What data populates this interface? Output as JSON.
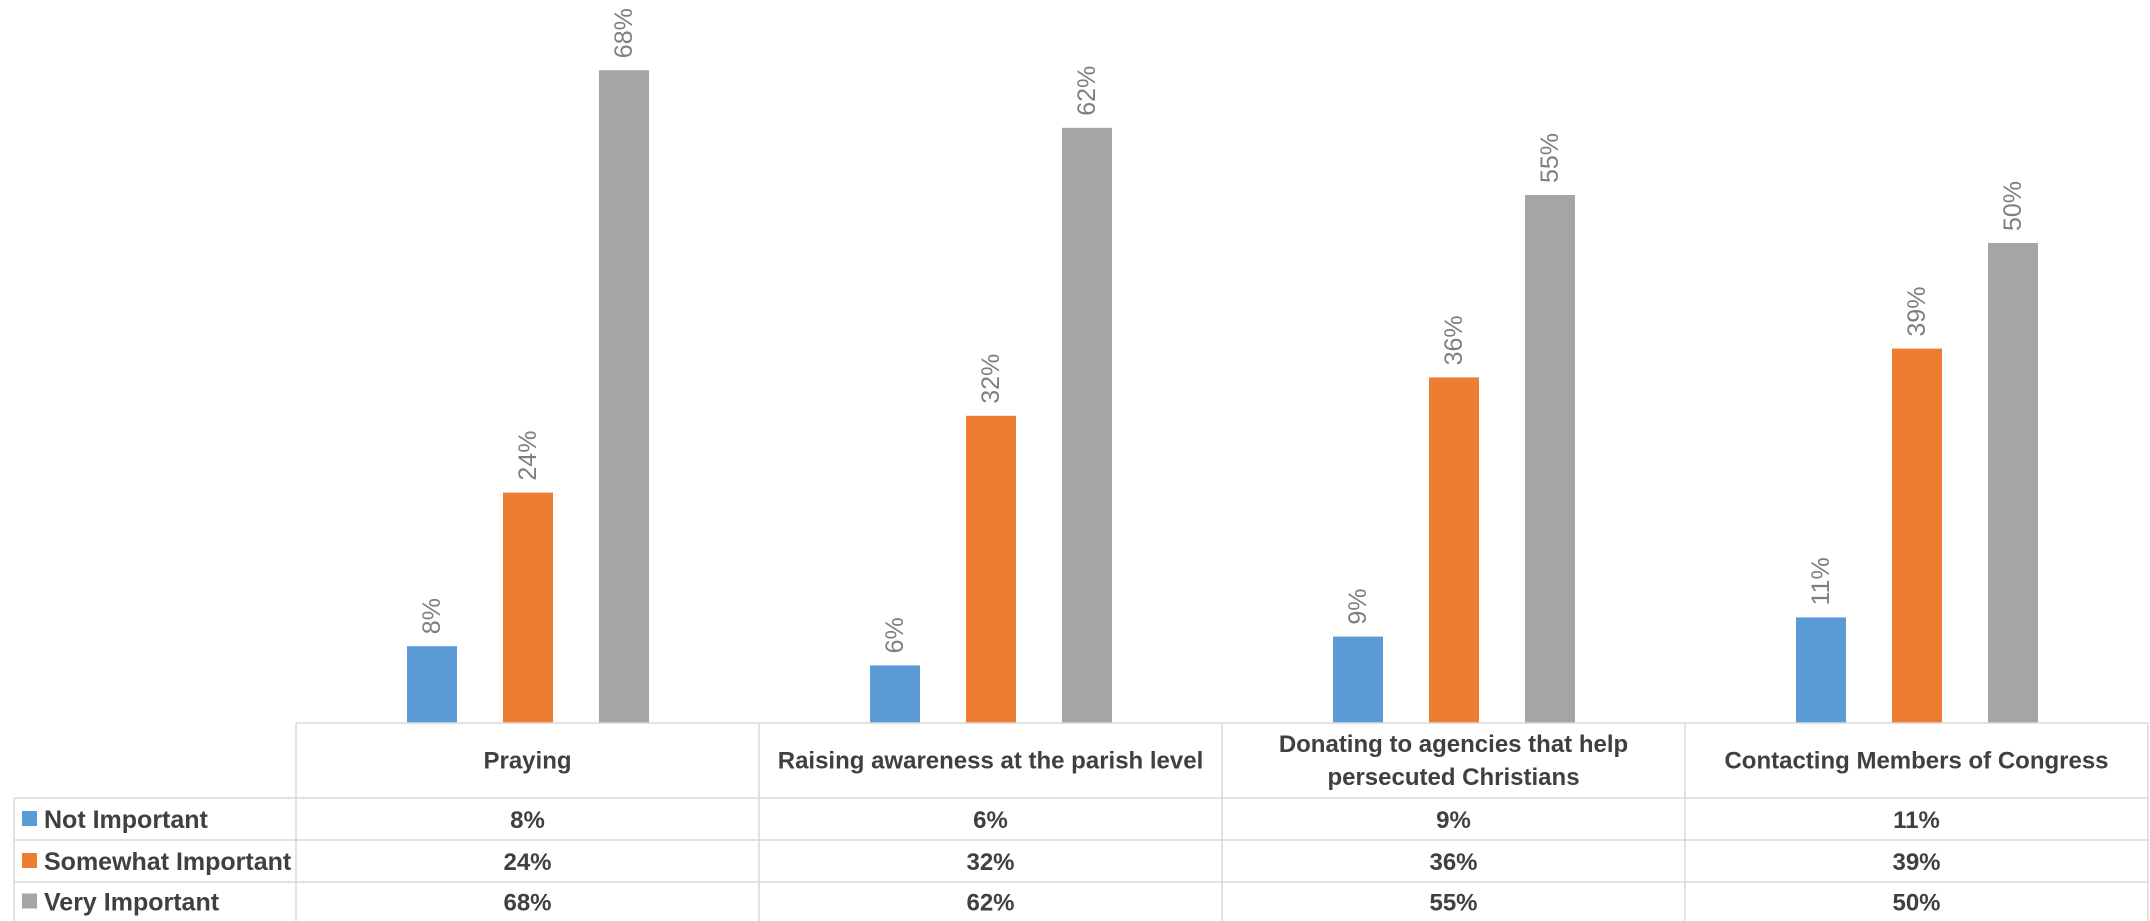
{
  "chart_data": {
    "type": "bar",
    "title": "",
    "xlabel": "",
    "ylabel": "",
    "ylim": [
      0,
      75
    ],
    "grid": false,
    "legend": "data-table-left",
    "categories": [
      [
        "Praying"
      ],
      [
        "Raising awareness at the parish level"
      ],
      [
        "Donating to agencies that help",
        "persecuted Christians"
      ],
      [
        "Contacting Members of Congress"
      ]
    ],
    "series": [
      {
        "name": "Not Important",
        "color": "#5b9bd5",
        "values": [
          8,
          6,
          9,
          11
        ],
        "labels": [
          "8%",
          "6%",
          "9%",
          "11%"
        ]
      },
      {
        "name": "Somewhat Important",
        "color": "#ed7d31",
        "values": [
          24,
          32,
          36,
          39
        ],
        "labels": [
          "24%",
          "32%",
          "36%",
          "39%"
        ]
      },
      {
        "name": "Very Important",
        "color": "#a5a5a5",
        "values": [
          68,
          62,
          55,
          50
        ],
        "labels": [
          "68%",
          "62%",
          "55%",
          "50%"
        ]
      }
    ],
    "table_border_color": "#d9d9d9",
    "label_color": "#7f7f7f"
  }
}
